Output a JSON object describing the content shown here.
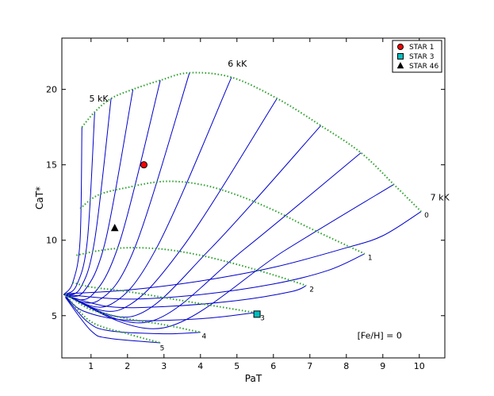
{
  "chart_data": {
    "type": "line",
    "xlabel": "PaT",
    "ylabel": "CaT*",
    "xlim": [
      0.2,
      10.7
    ],
    "ylim": [
      2.2,
      23.4
    ],
    "xticks": [
      1,
      2,
      3,
      4,
      5,
      6,
      7,
      8,
      9,
      10
    ],
    "yticks": [
      5,
      10,
      15,
      20
    ],
    "grid": false,
    "colors": {
      "model_lines": "#0000cc",
      "grid_lines": "#2ca02c"
    },
    "annotations": [
      {
        "text": "5 kK",
        "x": 0.95,
        "y": 19.2
      },
      {
        "text": "6 kK",
        "x": 4.75,
        "y": 21.5
      },
      {
        "text": "7 kK",
        "x": 10.3,
        "y": 12.65
      },
      {
        "text": "[Fe/H] = 0",
        "x": 8.3,
        "y": 3.5
      }
    ],
    "iso_curves": [
      {
        "label": "0",
        "label_x": 10.2,
        "label_y": 11.5,
        "points": [
          [
            0.3,
            6.45
          ],
          [
            2.0,
            6.7
          ],
          [
            4.0,
            7.3
          ],
          [
            6.0,
            8.2
          ],
          [
            8.0,
            9.5
          ],
          [
            9.0,
            10.3
          ],
          [
            10.05,
            11.9
          ]
        ]
      },
      {
        "label": "1",
        "label_x": 8.65,
        "label_y": 8.7,
        "points": [
          [
            0.3,
            6.4
          ],
          [
            2.0,
            6.1
          ],
          [
            4.0,
            6.4
          ],
          [
            6.0,
            7.1
          ],
          [
            7.5,
            8.0
          ],
          [
            8.5,
            9.1
          ]
        ]
      },
      {
        "label": "2",
        "label_x": 7.05,
        "label_y": 6.6,
        "points": [
          [
            0.3,
            6.35
          ],
          [
            1.5,
            5.6
          ],
          [
            3.0,
            5.6
          ],
          [
            5.0,
            6.0
          ],
          [
            6.5,
            6.6
          ],
          [
            6.9,
            7.0
          ]
        ]
      },
      {
        "label": "3",
        "label_x": 5.7,
        "label_y": 4.7,
        "points": [
          [
            0.3,
            6.3
          ],
          [
            0.8,
            5.3
          ],
          [
            2.0,
            4.7
          ],
          [
            4.0,
            4.8
          ],
          [
            5.5,
            5.2
          ]
        ]
      },
      {
        "label": "4",
        "label_x": 4.1,
        "label_y": 3.5,
        "points": [
          [
            0.3,
            6.25
          ],
          [
            0.9,
            4.6
          ],
          [
            1.5,
            4.0
          ],
          [
            3.0,
            3.8
          ],
          [
            4.0,
            3.9
          ]
        ]
      },
      {
        "label": "5",
        "label_x": 2.95,
        "label_y": 2.7,
        "points": [
          [
            0.3,
            6.2
          ],
          [
            1.0,
            4.0
          ],
          [
            1.5,
            3.5
          ],
          [
            2.9,
            3.2
          ]
        ]
      }
    ],
    "teff_curves": [
      {
        "points": [
          [
            0.25,
            6.4
          ],
          [
            0.5,
            7.2
          ],
          [
            0.7,
            10.0
          ],
          [
            0.75,
            17.5
          ]
        ]
      },
      {
        "points": [
          [
            0.25,
            6.4
          ],
          [
            0.6,
            7.0
          ],
          [
            0.9,
            10.0
          ],
          [
            1.1,
            18.5
          ]
        ]
      },
      {
        "points": [
          [
            0.25,
            6.4
          ],
          [
            0.7,
            6.8
          ],
          [
            1.1,
            10.0
          ],
          [
            1.55,
            19.4
          ]
        ]
      },
      {
        "points": [
          [
            0.25,
            6.4
          ],
          [
            0.8,
            6.6
          ],
          [
            1.4,
            10.0
          ],
          [
            2.15,
            20.0
          ]
        ]
      },
      {
        "points": [
          [
            0.25,
            6.4
          ],
          [
            1.0,
            6.3
          ],
          [
            1.8,
            10.0
          ],
          [
            2.9,
            20.6
          ]
        ]
      },
      {
        "points": [
          [
            0.25,
            6.4
          ],
          [
            1.2,
            6.0
          ],
          [
            2.2,
            9.5
          ],
          [
            3.7,
            21.1
          ]
        ]
      },
      {
        "points": [
          [
            0.25,
            6.4
          ],
          [
            1.5,
            5.7
          ],
          [
            2.8,
            9.5
          ],
          [
            4.85,
            20.8
          ]
        ]
      },
      {
        "points": [
          [
            0.25,
            6.4
          ],
          [
            1.8,
            5.4
          ],
          [
            3.5,
            9.5
          ],
          [
            6.1,
            19.4
          ]
        ]
      },
      {
        "points": [
          [
            0.25,
            6.4
          ],
          [
            2.2,
            5.0
          ],
          [
            4.3,
            9.5
          ],
          [
            7.3,
            17.6
          ]
        ]
      },
      {
        "points": [
          [
            0.25,
            6.4
          ],
          [
            2.6,
            4.6
          ],
          [
            5.2,
            9.4
          ],
          [
            8.4,
            15.8
          ]
        ]
      },
      {
        "points": [
          [
            0.25,
            6.4
          ],
          [
            3.0,
            4.2
          ],
          [
            6.3,
            9.3
          ],
          [
            9.3,
            13.7
          ]
        ]
      }
    ],
    "envelopes": [
      {
        "points": [
          [
            0.75,
            17.5
          ],
          [
            1.1,
            18.5
          ],
          [
            1.55,
            19.4
          ],
          [
            2.15,
            20.0
          ],
          [
            2.9,
            20.6
          ],
          [
            3.7,
            21.1
          ],
          [
            4.85,
            20.8
          ],
          [
            6.1,
            19.4
          ],
          [
            7.3,
            17.6
          ],
          [
            8.4,
            15.8
          ],
          [
            9.3,
            13.7
          ],
          [
            10.05,
            11.9
          ]
        ]
      },
      {
        "points": [
          [
            0.7,
            12.1
          ],
          [
            1.2,
            13.0
          ],
          [
            2.0,
            13.5
          ],
          [
            3.0,
            13.9
          ],
          [
            4.0,
            13.7
          ],
          [
            5.0,
            13.0
          ],
          [
            6.0,
            12.0
          ],
          [
            7.0,
            10.8
          ],
          [
            8.5,
            9.1
          ]
        ]
      },
      {
        "points": [
          [
            0.6,
            9.0
          ],
          [
            1.2,
            9.3
          ],
          [
            2.0,
            9.5
          ],
          [
            3.0,
            9.4
          ],
          [
            4.0,
            9.0
          ],
          [
            5.0,
            8.4
          ],
          [
            6.0,
            7.7
          ],
          [
            6.9,
            7.0
          ]
        ]
      },
      {
        "points": [
          [
            0.5,
            7.2
          ],
          [
            1.0,
            6.9
          ],
          [
            2.0,
            6.6
          ],
          [
            3.0,
            6.2
          ],
          [
            4.0,
            5.8
          ],
          [
            5.5,
            5.2
          ]
        ]
      },
      {
        "points": [
          [
            0.3,
            6.45
          ],
          [
            1.0,
            5.4
          ],
          [
            2.0,
            4.8
          ],
          [
            3.0,
            4.4
          ],
          [
            4.0,
            3.9
          ]
        ]
      },
      {
        "points": [
          [
            0.3,
            6.4
          ],
          [
            1.0,
            4.6
          ],
          [
            2.0,
            3.8
          ],
          [
            2.9,
            3.2
          ]
        ]
      }
    ],
    "legend": {
      "position": "top-right",
      "entries": [
        {
          "name": "STAR 1",
          "marker": "circle",
          "color": "#ff0000"
        },
        {
          "name": "STAR 3",
          "marker": "square",
          "color": "#00bfbf"
        },
        {
          "name": "STAR 46",
          "marker": "triangle",
          "color": "#000000"
        }
      ]
    },
    "stars": [
      {
        "name": "STAR 1",
        "x": 2.45,
        "y": 15.0
      },
      {
        "name": "STAR 3",
        "x": 5.55,
        "y": 5.1
      },
      {
        "name": "STAR 46",
        "x": 1.65,
        "y": 10.8
      }
    ]
  }
}
